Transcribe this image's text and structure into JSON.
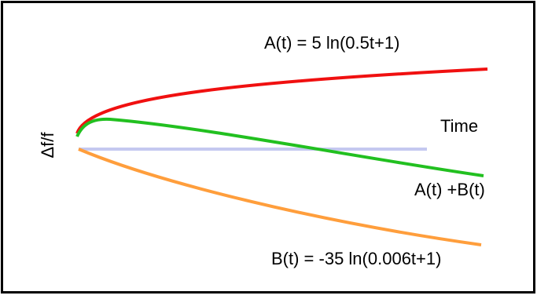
{
  "labels": {
    "a": "A(t) = 5 ln(0.5t+1)",
    "y_axis": "Δf/f",
    "time": "Time",
    "sum": "A(t) +B(t)",
    "b": "B(t) = -35 ln(0.006t+1)"
  }
}
